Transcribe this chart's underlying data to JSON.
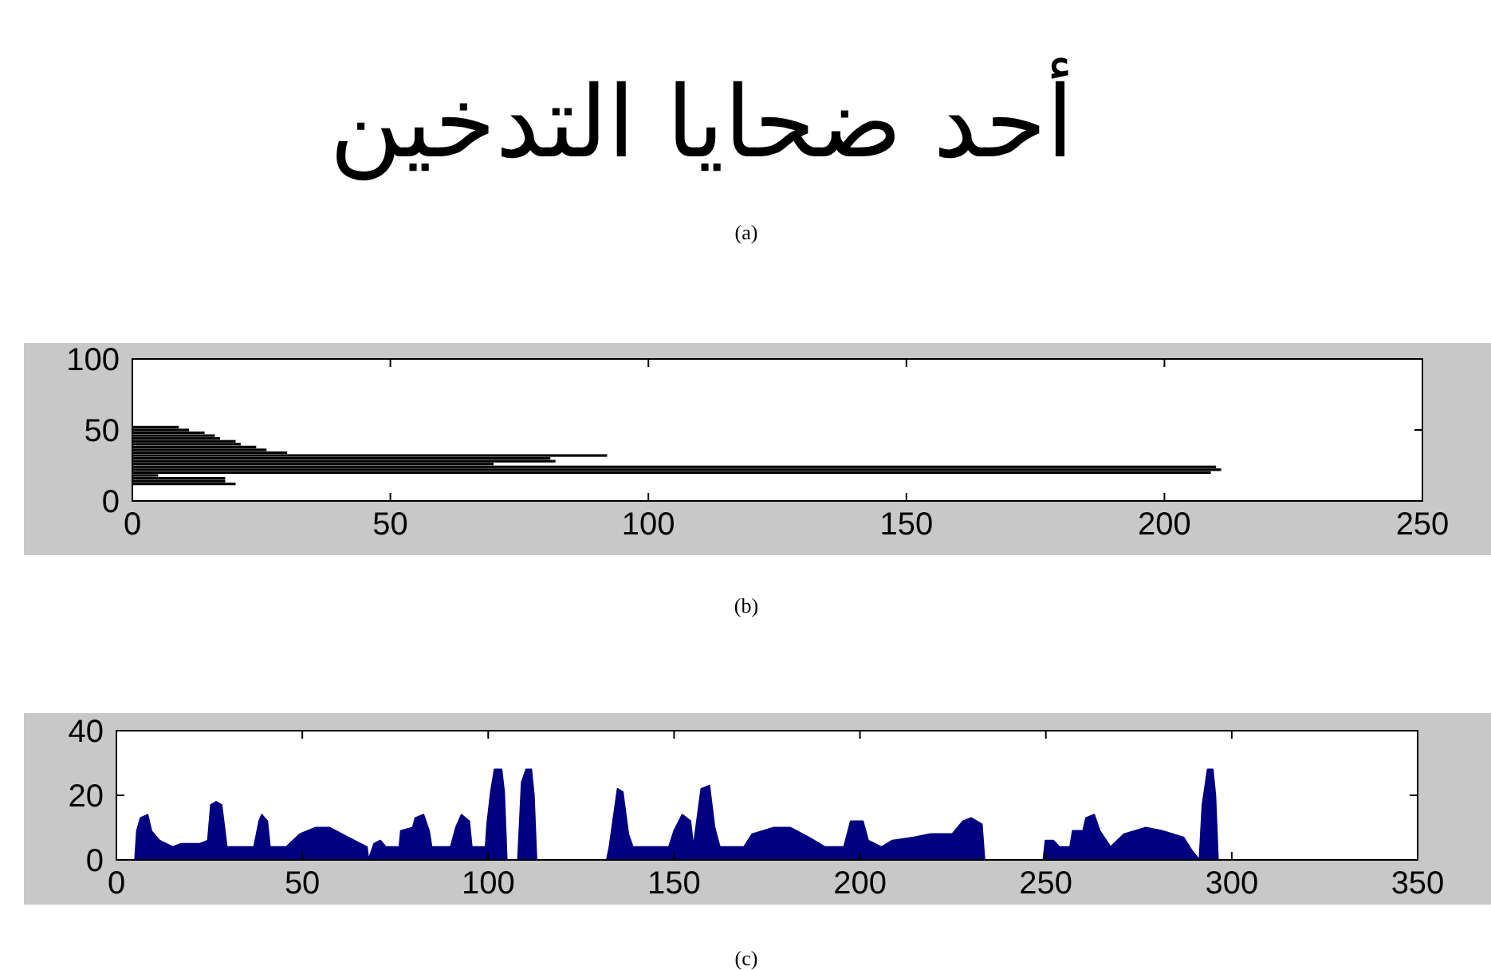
{
  "chart_data": [
    {
      "type": "other",
      "title": "أحد ضحايا التدخين",
      "annotations": [
        "(a)"
      ]
    },
    {
      "type": "bar",
      "orientation": "horizontal",
      "color": "#000000",
      "annotations": [
        "(b)"
      ],
      "x": [
        12,
        14,
        16,
        18,
        20,
        22,
        24,
        26,
        28,
        30,
        32,
        34,
        36,
        38,
        40,
        42,
        44,
        46,
        48,
        50,
        52
      ],
      "values": [
        20,
        18,
        18,
        5,
        209,
        211,
        210,
        70,
        82,
        81,
        92,
        30,
        26,
        24,
        21,
        20,
        17,
        16,
        14,
        11,
        9
      ],
      "xlim": [
        0,
        250
      ],
      "ylim": [
        0,
        100
      ],
      "xticks": [
        0,
        50,
        100,
        150,
        200,
        250
      ],
      "yticks": [
        0,
        50,
        100
      ]
    },
    {
      "type": "area",
      "color": "#000080",
      "annotations": [
        "(c)"
      ],
      "x": [
        0,
        5,
        5.5,
        6.5,
        8.4,
        9.4,
        11.6,
        15.2,
        17.4,
        22.5,
        24.6,
        25.4,
        26.8,
        28.3,
        29.7,
        37,
        38.4,
        39.1,
        40.6,
        41.3,
        45.7,
        49.3,
        53.6,
        57.3,
        62.3,
        67.4,
        67.8,
        69.3,
        71,
        72.5,
        76.1,
        76.5,
        79.7,
        80.4,
        82.6,
        84.1,
        84.8,
        89.9,
        91.3,
        92.8,
        94.9,
        95.6,
        99.3,
        99.7,
        100.7,
        101.7,
        103.6,
        104.3,
        105,
        108,
        109,
        110.2,
        111.6,
        112.3,
        113,
        131.9,
        132.6,
        134.8,
        136.2,
        137.7,
        138.9,
        148.6,
        150,
        152.2,
        154.4,
        155.2,
        157.3,
        159.5,
        160.9,
        162.3,
        168.8,
        171,
        176.8,
        181.2,
        186.2,
        190.6,
        195.7,
        197.5,
        200.8,
        202.2,
        205.8,
        208.7,
        214.5,
        219,
        224.8,
        227.7,
        229.9,
        232.8,
        233.5,
        249.3,
        249.9,
        252,
        253.6,
        256.5,
        257.2,
        260,
        260.8,
        263,
        264.5,
        267.4,
        271,
        276.9,
        281.2,
        287,
        289.2,
        291.3,
        292.1,
        293.5,
        294.9,
        295.6,
        296.3,
        300
      ],
      "values": [
        0,
        0,
        9,
        13,
        14,
        9,
        6,
        4,
        5,
        5,
        6,
        17,
        18,
        17,
        4,
        4,
        12,
        14,
        12,
        4,
        4,
        8,
        10,
        10,
        7,
        4,
        0,
        5,
        6,
        4,
        4,
        9,
        10,
        13,
        14,
        9,
        4,
        4,
        10,
        14,
        12,
        4,
        4,
        11,
        21,
        28,
        28,
        21,
        0,
        0,
        24,
        28,
        28,
        20,
        0,
        0,
        4,
        22,
        21,
        8,
        4,
        4,
        9,
        14,
        12,
        4,
        22,
        23,
        10,
        4,
        4,
        8,
        10,
        10,
        7,
        4,
        4,
        12,
        12,
        6,
        4,
        6,
        7,
        8,
        8,
        12,
        13,
        11,
        0,
        0,
        6,
        6,
        4,
        4,
        9,
        9,
        13,
        14,
        9,
        4,
        8,
        10,
        9,
        7,
        3,
        0,
        17,
        28,
        28,
        20,
        0,
        0
      ],
      "xlim": [
        0,
        350
      ],
      "ylim": [
        0,
        40
      ],
      "xticks": [
        0,
        50,
        100,
        150,
        200,
        250,
        300,
        350
      ],
      "yticks": [
        0,
        20,
        40
      ]
    }
  ]
}
